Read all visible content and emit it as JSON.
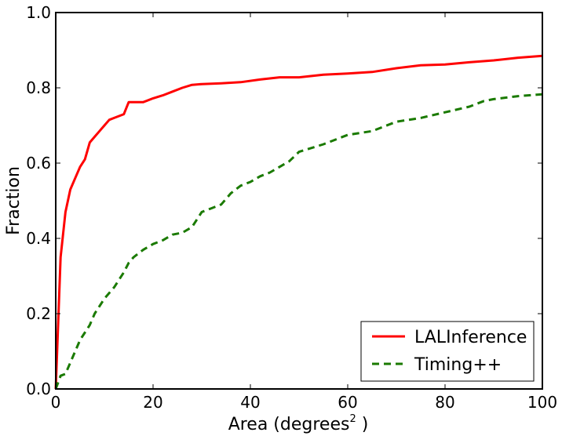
{
  "chart_data": {
    "type": "line",
    "xlabel_main": "Area (degrees",
    "xlabel_sup": "2",
    "xlabel_end": " )",
    "ylabel": "Fraction",
    "xlim": [
      0,
      100
    ],
    "ylim": [
      0,
      1.0
    ],
    "xticks": [
      0,
      20,
      40,
      60,
      80,
      100
    ],
    "xtick_labels": [
      "0",
      "20",
      "40",
      "60",
      "80",
      "100"
    ],
    "yticks": [
      0,
      0.2,
      0.4,
      0.6,
      0.8,
      1.0
    ],
    "ytick_labels": [
      "0.0",
      "0.2",
      "0.4",
      "0.6",
      "0.8",
      "1.0"
    ],
    "grid": false,
    "legend_position": "bottom-right",
    "series": [
      {
        "name": "LALInference",
        "color": "#ff0000",
        "style": "solid",
        "x": [
          0,
          1,
          2,
          3,
          4,
          5,
          6,
          7,
          8,
          9,
          10,
          11,
          12,
          13,
          14,
          15,
          16,
          18,
          20,
          22,
          24,
          26,
          28,
          30,
          34,
          38,
          42,
          46,
          50,
          55,
          60,
          65,
          70,
          75,
          80,
          85,
          90,
          95,
          100
        ],
        "y": [
          0.0,
          0.35,
          0.47,
          0.53,
          0.56,
          0.59,
          0.61,
          0.655,
          0.67,
          0.685,
          0.7,
          0.715,
          0.72,
          0.725,
          0.73,
          0.762,
          0.762,
          0.762,
          0.772,
          0.78,
          0.79,
          0.8,
          0.808,
          0.81,
          0.812,
          0.815,
          0.822,
          0.828,
          0.828,
          0.835,
          0.838,
          0.842,
          0.852,
          0.86,
          0.862,
          0.868,
          0.873,
          0.88,
          0.885
        ]
      },
      {
        "name": "Timing++",
        "color": "#1a7a00",
        "style": "dashed",
        "x": [
          0,
          1,
          2,
          3,
          4,
          5,
          6,
          7,
          8,
          9,
          10,
          12,
          14,
          15,
          16,
          18,
          20,
          22,
          24,
          26,
          28,
          30,
          32,
          34,
          36,
          38,
          40,
          42,
          44,
          46,
          48,
          50,
          55,
          60,
          65,
          70,
          75,
          80,
          85,
          88,
          90,
          95,
          100
        ],
        "y": [
          0.0,
          0.035,
          0.04,
          0.07,
          0.1,
          0.13,
          0.15,
          0.17,
          0.2,
          0.22,
          0.24,
          0.27,
          0.31,
          0.335,
          0.35,
          0.37,
          0.385,
          0.395,
          0.41,
          0.415,
          0.43,
          0.47,
          0.48,
          0.49,
          0.52,
          0.54,
          0.55,
          0.565,
          0.575,
          0.59,
          0.605,
          0.63,
          0.65,
          0.675,
          0.685,
          0.71,
          0.72,
          0.735,
          0.75,
          0.765,
          0.77,
          0.778,
          0.783
        ]
      }
    ]
  }
}
